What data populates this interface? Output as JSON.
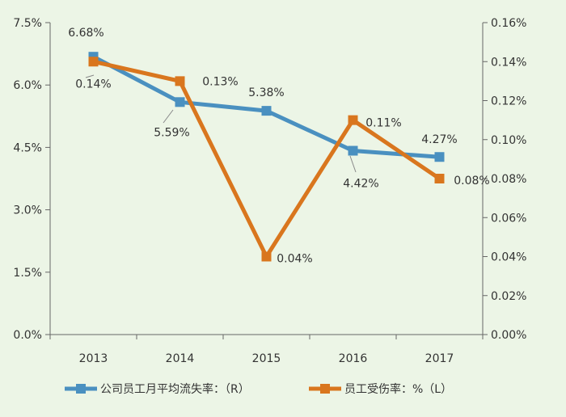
{
  "chart_data": {
    "type": "line",
    "categories": [
      "2013",
      "2014",
      "2015",
      "2016",
      "2017"
    ],
    "y_left": {
      "ticks": [
        "0.0%",
        "1.5%",
        "3.0%",
        "4.5%",
        "6.0%",
        "7.5%"
      ],
      "range": [
        0,
        7.5
      ]
    },
    "y_right": {
      "ticks": [
        "0.00%",
        "0.02%",
        "0.04%",
        "0.06%",
        "0.08%",
        "0.10%",
        "0.12%",
        "0.14%",
        "0.16%"
      ],
      "range": [
        0,
        0.16
      ]
    },
    "series": [
      {
        "name": "公司员工月平均流失率：（R）",
        "axis": "left",
        "color": "#4a90c0",
        "marker": "square",
        "values": [
          6.68,
          5.59,
          5.38,
          4.42,
          4.27
        ],
        "labels": [
          "6.68%",
          "5.59%",
          "5.38%",
          "4.42%",
          "4.27%"
        ]
      },
      {
        "name": "员工受伤率：%（L）",
        "axis": "right",
        "color": "#d9761e",
        "marker": "square",
        "values": [
          0.14,
          0.13,
          0.04,
          0.11,
          0.08
        ],
        "labels": [
          "0.14%",
          "0.13%",
          "0.04%",
          "0.11%",
          "0.08%"
        ]
      }
    ],
    "grid": false,
    "legend": "bottom"
  }
}
